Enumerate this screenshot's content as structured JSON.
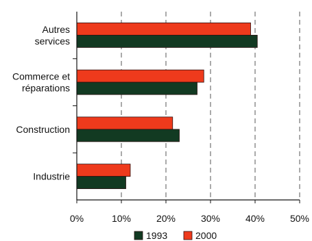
{
  "chart_data": {
    "type": "bar",
    "orientation": "horizontal",
    "categories": [
      [
        "Autres",
        "services"
      ],
      [
        "Commerce et",
        "réparations"
      ],
      [
        "Construction"
      ],
      [
        "Industrie"
      ]
    ],
    "series": [
      {
        "name": "1993",
        "values": [
          40.5,
          27,
          23,
          11
        ],
        "color": "#123a22"
      },
      {
        "name": "2000",
        "values": [
          39,
          28.5,
          21.5,
          12
        ],
        "color": "#ee3a1c"
      }
    ],
    "xlim": [
      0,
      50
    ],
    "xticks": [
      0,
      10,
      20,
      30,
      40,
      50
    ],
    "tick_labels": [
      "0%",
      "10%",
      "20%",
      "30%",
      "40%",
      "50%"
    ],
    "grid": "vertical-dashed",
    "legend_position": "bottom"
  }
}
